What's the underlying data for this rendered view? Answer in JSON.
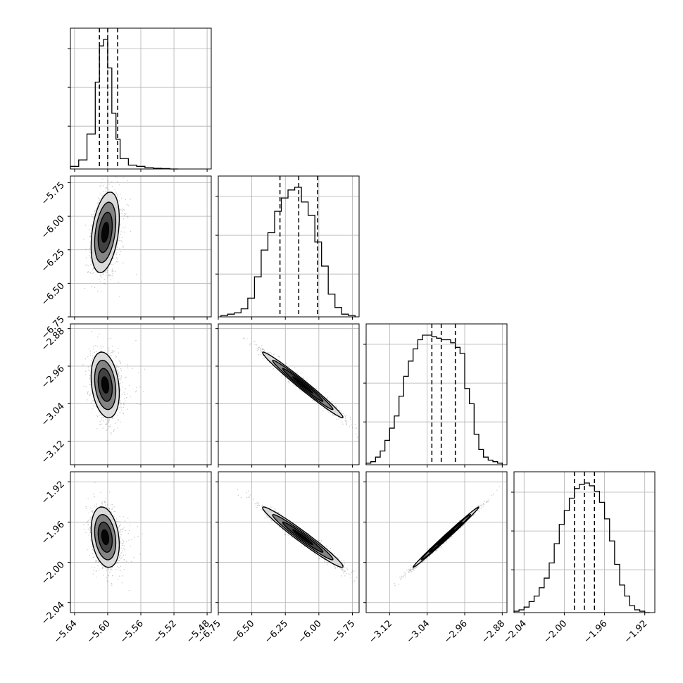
{
  "chart_data": {
    "type": "corner",
    "parameters": [
      {
        "range": [
          -5.645,
          -5.475
        ],
        "ticks": [
          -5.64,
          -5.6,
          -5.56,
          -5.52,
          -5.48
        ],
        "tick_labels": [
          "−5.64",
          "−5.60",
          "−5.56",
          "−5.52",
          "−5.48"
        ],
        "quantiles": [
          -5.61,
          -5.6,
          -5.588
        ],
        "hist_edges": [
          -5.645,
          -5.635,
          -5.625,
          -5.615,
          -5.61,
          -5.605,
          -5.6,
          -5.595,
          -5.59,
          -5.585,
          -5.575,
          -5.565,
          -5.555,
          -5.545,
          -5.535,
          -5.525,
          -5.515
        ],
        "hist_counts": [
          2,
          7,
          27,
          67,
          95,
          100,
          78,
          43,
          23,
          8,
          3,
          2,
          1,
          0.5,
          0.3,
          0
        ]
      },
      {
        "range": [
          -6.75,
          -5.7
        ],
        "ticks": [
          -6.75,
          -6.5,
          -6.25,
          -6.0,
          -5.75
        ],
        "tick_labels": [
          "−6.75",
          "−6.50",
          "−6.25",
          "−6.00",
          "−5.75"
        ],
        "quantiles": [
          -6.29,
          -6.15,
          -6.01
        ],
        "hist_edges": [
          -6.73,
          -6.68,
          -6.63,
          -6.58,
          -6.53,
          -6.48,
          -6.43,
          -6.38,
          -6.33,
          -6.28,
          -6.23,
          -6.18,
          -6.13,
          -6.08,
          -6.03,
          -5.98,
          -5.93,
          -5.88,
          -5.83,
          -5.78,
          -5.73
        ],
        "hist_counts": [
          1,
          2,
          3,
          6,
          14,
          30,
          50,
          63,
          79,
          89,
          95,
          97,
          86,
          76,
          56,
          38,
          17,
          7,
          2,
          1
        ]
      },
      {
        "range": [
          -3.17,
          -2.87
        ],
        "ticks": [
          -3.12,
          -3.04,
          -2.96,
          -2.88
        ],
        "tick_labels": [
          "−3.12",
          "−3.04",
          "−2.96",
          "−2.88"
        ],
        "quantiles": [
          -3.03,
          -3.01,
          -2.98
        ],
        "hist_edges": [
          -3.17,
          -3.16,
          -3.15,
          -3.14,
          -3.13,
          -3.12,
          -3.11,
          -3.1,
          -3.09,
          -3.08,
          -3.07,
          -3.06,
          -3.05,
          -3.04,
          -3.03,
          -3.02,
          -3.01,
          -3.0,
          -2.99,
          -2.98,
          -2.97,
          -2.96,
          -2.95,
          -2.94,
          -2.93,
          -2.92,
          -2.91,
          -2.9,
          -2.89,
          -2.88
        ],
        "hist_counts": [
          1,
          2,
          5,
          9,
          16,
          24,
          32,
          45,
          58,
          68,
          76,
          82,
          85,
          85,
          84,
          83,
          82,
          82,
          80,
          77,
          73,
          50,
          40,
          20,
          10,
          5,
          3,
          2,
          1
        ]
      },
      {
        "range": [
          -2.05,
          -1.91
        ],
        "ticks": [
          -2.04,
          -2.0,
          -1.96,
          -1.92
        ],
        "tick_labels": [
          "−2.04",
          "−2.00",
          "−1.96",
          "−1.92"
        ],
        "quantiles": [
          -1.99,
          -1.98,
          -1.97
        ],
        "hist_edges": [
          -2.05,
          -2.045,
          -2.04,
          -2.035,
          -2.03,
          -2.025,
          -2.02,
          -2.015,
          -2.01,
          -2.005,
          -2.0,
          -1.995,
          -1.99,
          -1.985,
          -1.98,
          -1.975,
          -1.97,
          -1.965,
          -1.96,
          -1.955,
          -1.95,
          -1.945,
          -1.94,
          -1.935,
          -1.93,
          -1.925,
          -1.92,
          -1.915
        ],
        "hist_counts": [
          1,
          2,
          4,
          8,
          12,
          18,
          25,
          36,
          50,
          64,
          74,
          83,
          90,
          93,
          94,
          92,
          88,
          80,
          68,
          52,
          35,
          20,
          12,
          5,
          2,
          1,
          0
        ]
      }
    ],
    "pairs": [
      {
        "x_param": 0,
        "y_param": 1,
        "center": [
          -5.603,
          -6.12
        ],
        "sd": [
          0.0085,
          0.15
        ],
        "corr": 0.35
      },
      {
        "x_param": 0,
        "y_param": 2,
        "center": [
          -5.603,
          -3.0
        ],
        "sd": [
          0.0085,
          0.035
        ],
        "corr": -0.25
      },
      {
        "x_param": 0,
        "y_param": 3,
        "center": [
          -5.603,
          -1.975
        ],
        "sd": [
          0.0085,
          0.015
        ],
        "corr": -0.25
      },
      {
        "x_param": 1,
        "y_param": 2,
        "center": [
          -6.12,
          -3.0
        ],
        "sd": [
          0.15,
          0.035
        ],
        "corr": -0.985
      },
      {
        "x_param": 1,
        "y_param": 3,
        "center": [
          -6.12,
          -1.975
        ],
        "sd": [
          0.15,
          0.015
        ],
        "corr": -0.975
      },
      {
        "x_param": 2,
        "y_param": 3,
        "center": [
          -3.0,
          -1.975
        ],
        "sd": [
          0.035,
          0.015
        ],
        "corr": 0.995
      }
    ],
    "contour_levels_sigma": [
      0.5,
      1.0,
      1.5,
      2.0
    ],
    "grid": true,
    "colors": {
      "line": "#000000",
      "grid": "#b0b0b0",
      "points": "#555555"
    }
  }
}
